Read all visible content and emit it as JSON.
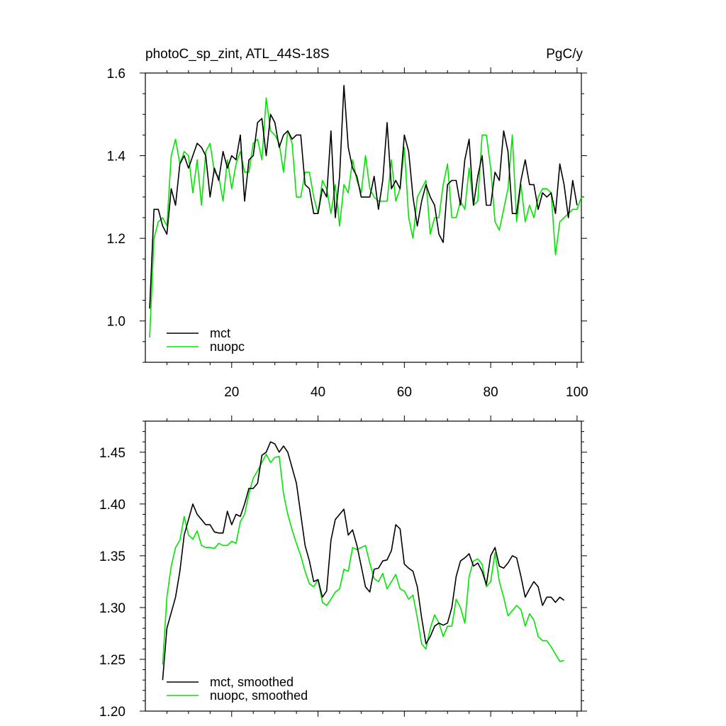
{
  "chart_data": [
    {
      "type": "line",
      "title": "photoC_sp_zint, ATL_44S-18S",
      "units": "PgC/y",
      "xlabel": "",
      "ylabel": "",
      "xlim": [
        0,
        101
      ],
      "ylim": [
        0.9,
        1.6
      ],
      "x_ticks": [
        20,
        40,
        60,
        80,
        100
      ],
      "y_ticks": [
        1.0,
        1.2,
        1.4,
        1.6
      ],
      "y_tick_labels": [
        "1.0",
        "1.2",
        "1.4",
        "1.6"
      ],
      "legend_position": "bottom-left",
      "series": [
        {
          "name": "mct",
          "color": "#000000",
          "x_start": 1,
          "values": [
            1.03,
            1.27,
            1.27,
            1.23,
            1.21,
            1.32,
            1.28,
            1.38,
            1.4,
            1.37,
            1.4,
            1.43,
            1.42,
            1.4,
            1.3,
            1.37,
            1.34,
            1.41,
            1.37,
            1.4,
            1.39,
            1.45,
            1.29,
            1.39,
            1.4,
            1.48,
            1.49,
            1.4,
            1.5,
            1.48,
            1.42,
            1.45,
            1.46,
            1.44,
            1.45,
            1.45,
            1.33,
            1.32,
            1.26,
            1.26,
            1.32,
            1.3,
            1.46,
            1.25,
            1.35,
            1.57,
            1.42,
            1.37,
            1.35,
            1.3,
            1.3,
            1.3,
            1.35,
            1.27,
            1.34,
            1.48,
            1.32,
            1.34,
            1.32,
            1.45,
            1.41,
            1.3,
            1.23,
            1.29,
            1.33,
            1.3,
            1.28,
            1.21,
            1.19,
            1.33,
            1.34,
            1.34,
            1.28,
            1.39,
            1.44,
            1.28,
            1.35,
            1.4,
            1.28,
            1.28,
            1.36,
            1.34,
            1.46,
            1.41,
            1.26,
            1.26,
            1.34,
            1.39,
            1.33,
            1.33,
            1.27,
            1.31,
            1.3,
            1.31,
            1.26,
            1.38,
            1.33,
            1.25,
            1.34,
            1.28
          ]
        },
        {
          "name": "nuopc",
          "color": "#00e600",
          "x_start": 1,
          "values": [
            0.96,
            1.2,
            1.24,
            1.25,
            1.23,
            1.4,
            1.44,
            1.38,
            1.41,
            1.4,
            1.31,
            1.39,
            1.28,
            1.41,
            1.43,
            1.36,
            1.35,
            1.29,
            1.39,
            1.32,
            1.38,
            1.41,
            1.36,
            1.36,
            1.43,
            1.44,
            1.39,
            1.54,
            1.46,
            1.45,
            1.43,
            1.36,
            1.46,
            1.43,
            1.3,
            1.3,
            1.36,
            1.36,
            1.3,
            1.26,
            1.34,
            1.32,
            1.26,
            1.33,
            1.23,
            1.33,
            1.31,
            1.39,
            1.34,
            1.31,
            1.4,
            1.32,
            1.3,
            1.29,
            1.29,
            1.29,
            1.39,
            1.29,
            1.32,
            1.42,
            1.25,
            1.2,
            1.3,
            1.32,
            1.34,
            1.21,
            1.25,
            1.25,
            1.33,
            1.38,
            1.25,
            1.25,
            1.29,
            1.27,
            1.37,
            1.28,
            1.29,
            1.45,
            1.45,
            1.37,
            1.24,
            1.22,
            1.27,
            1.32,
            1.45,
            1.24,
            1.33,
            1.24,
            1.28,
            1.25,
            1.3,
            1.32,
            1.32,
            1.31,
            1.16,
            1.24,
            1.25,
            1.26,
            1.27,
            1.27,
            1.3
          ]
        }
      ]
    },
    {
      "type": "line",
      "title": "",
      "xlabel": "",
      "ylabel": "",
      "xlim": [
        0,
        101
      ],
      "ylim": [
        1.2,
        1.48
      ],
      "x_ticks": [
        20,
        40,
        60,
        80,
        100
      ],
      "y_ticks": [
        1.2,
        1.25,
        1.3,
        1.35,
        1.4,
        1.45
      ],
      "y_tick_labels": [
        "1.20",
        "1.25",
        "1.30",
        "1.35",
        "1.40",
        "1.45"
      ],
      "legend_position": "bottom-left",
      "series": [
        {
          "name": "mct, smoothed",
          "color": "#000000",
          "x_start": 4,
          "values": [
            1.23,
            1.28,
            1.295,
            1.31,
            1.335,
            1.37,
            1.385,
            1.4,
            1.39,
            1.385,
            1.38,
            1.38,
            1.373,
            1.372,
            1.372,
            1.393,
            1.38,
            1.39,
            1.388,
            1.4,
            1.415,
            1.415,
            1.42,
            1.447,
            1.45,
            1.46,
            1.458,
            1.45,
            1.456,
            1.45,
            1.435,
            1.42,
            1.39,
            1.36,
            1.345,
            1.325,
            1.327,
            1.31,
            1.316,
            1.365,
            1.385,
            1.39,
            1.395,
            1.37,
            1.375,
            1.36,
            1.34,
            1.32,
            1.315,
            1.337,
            1.338,
            1.345,
            1.346,
            1.355,
            1.38,
            1.376,
            1.342,
            1.338,
            1.335,
            1.32,
            1.29,
            1.265,
            1.272,
            1.282,
            1.285,
            1.283,
            1.285,
            1.3,
            1.33,
            1.345,
            1.348,
            1.352,
            1.34,
            1.343,
            1.335,
            1.322,
            1.35,
            1.358,
            1.34,
            1.338,
            1.343,
            1.35,
            1.348,
            1.33,
            1.31,
            1.318,
            1.325,
            1.32,
            1.302,
            1.31,
            1.31,
            1.305,
            1.31,
            1.307
          ]
        },
        {
          "name": "nuopc, smoothed",
          "color": "#00e600",
          "x_start": 4,
          "values": [
            1.245,
            1.31,
            1.34,
            1.358,
            1.365,
            1.388,
            1.37,
            1.366,
            1.374,
            1.36,
            1.358,
            1.358,
            1.357,
            1.362,
            1.36,
            1.36,
            1.364,
            1.362,
            1.383,
            1.39,
            1.41,
            1.425,
            1.432,
            1.44,
            1.448,
            1.44,
            1.445,
            1.446,
            1.41,
            1.39,
            1.375,
            1.362,
            1.35,
            1.335,
            1.323,
            1.32,
            1.327,
            1.305,
            1.302,
            1.308,
            1.315,
            1.318,
            1.337,
            1.335,
            1.358,
            1.356,
            1.358,
            1.36,
            1.343,
            1.328,
            1.325,
            1.333,
            1.318,
            1.325,
            1.332,
            1.318,
            1.316,
            1.308,
            1.312,
            1.29,
            1.265,
            1.26,
            1.28,
            1.293,
            1.285,
            1.272,
            1.282,
            1.282,
            1.308,
            1.3,
            1.285,
            1.33,
            1.345,
            1.347,
            1.342,
            1.32,
            1.325,
            1.353,
            1.325,
            1.31,
            1.292,
            1.297,
            1.302,
            1.298,
            1.282,
            1.294,
            1.288,
            1.272,
            1.268,
            1.268,
            1.262,
            1.255,
            1.248,
            1.249
          ]
        }
      ]
    }
  ]
}
